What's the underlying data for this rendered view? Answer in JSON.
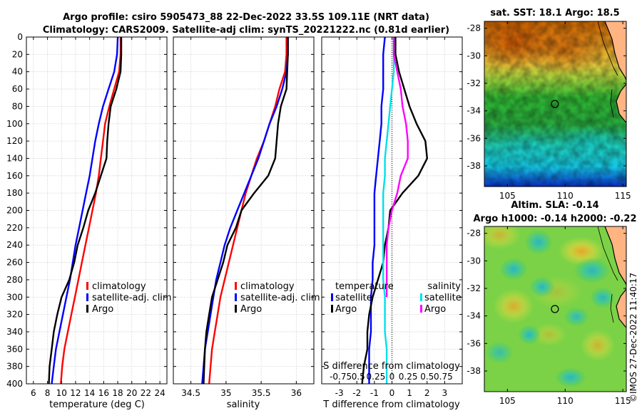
{
  "title": {
    "line1": "Argo profile: csiro 5905473_88 22-Dec-2022 33.5S 109.11E (NRT data)",
    "line2": "Climatology: CARS2009. Satellite-adj clim: synTS_20221222.nc (0.81d earlier)"
  },
  "watermark": "©IMOS 27-Dec-2022 11:40:17",
  "colors": {
    "climatology": "#ff0000",
    "satellite_adj": "#0000ff",
    "argo": "#000000",
    "sal_satellite": "#00e0e8",
    "sal_argo": "#ff00ff",
    "grid": "#c8c8c8"
  },
  "chart_data": [
    {
      "type": "line",
      "name": "temperature-panel",
      "xlabel": "temperature (deg C)",
      "ylabel": "",
      "xlim": [
        5,
        25
      ],
      "ylim": [
        400,
        0
      ],
      "xticks": [
        6,
        8,
        10,
        12,
        14,
        16,
        18,
        20,
        22,
        24
      ],
      "yticks": [
        0,
        20,
        40,
        60,
        80,
        100,
        120,
        140,
        160,
        180,
        200,
        220,
        240,
        260,
        280,
        300,
        320,
        340,
        360,
        380,
        400
      ],
      "legend": [
        "climatology",
        "satellite-adj. clim",
        "Argo"
      ],
      "series": [
        {
          "name": "climatology",
          "color": "#ff0000",
          "x": [
            18.4,
            18.4,
            18.2,
            17.5,
            16.8,
            16.2,
            15.9,
            15.6,
            15.3,
            14.9,
            14.4,
            13.9,
            13.4,
            12.9,
            12.4,
            11.9,
            11.4,
            10.9,
            10.4,
            10.1,
            9.9
          ],
          "y": [
            0,
            20,
            40,
            60,
            80,
            100,
            120,
            140,
            160,
            180,
            200,
            220,
            240,
            260,
            280,
            300,
            320,
            340,
            360,
            380,
            400
          ]
        },
        {
          "name": "satellite-adj. clim",
          "color": "#0000ff",
          "x": [
            18.0,
            17.9,
            17.5,
            16.7,
            15.9,
            15.3,
            14.8,
            14.4,
            14.0,
            13.5,
            13.0,
            12.5,
            12.0,
            11.6,
            11.2,
            10.7,
            10.2,
            9.7,
            9.2,
            8.9,
            8.6
          ],
          "y": [
            0,
            20,
            40,
            60,
            80,
            100,
            120,
            140,
            160,
            180,
            200,
            220,
            240,
            260,
            280,
            300,
            320,
            340,
            360,
            380,
            400
          ]
        },
        {
          "name": "Argo",
          "color": "#000000",
          "x": [
            18.5,
            18.5,
            18.4,
            17.8,
            17.0,
            16.7,
            16.5,
            16.4,
            15.6,
            14.8,
            13.8,
            13.1,
            12.3,
            11.8,
            11.1,
            10.0,
            9.4,
            8.9,
            8.6,
            8.3,
            8.2
          ],
          "y": [
            0,
            20,
            40,
            60,
            80,
            100,
            120,
            140,
            160,
            180,
            200,
            220,
            240,
            260,
            280,
            300,
            320,
            340,
            360,
            380,
            400
          ]
        }
      ]
    },
    {
      "type": "line",
      "name": "salinity-panel",
      "xlabel": "salinity",
      "xlim": [
        34.25,
        36.25
      ],
      "ylim": [
        400,
        0
      ],
      "xticks": [
        34.5,
        35,
        35.5,
        36
      ],
      "xticklabels": [
        "34.5",
        "35",
        "35.5",
        "36"
      ],
      "legend": [
        "climatology",
        "satellite-adj. clim",
        "Argo"
      ],
      "series": [
        {
          "name": "climatology",
          "color": "#ff0000",
          "x": [
            35.86,
            35.86,
            35.84,
            35.76,
            35.7,
            35.62,
            35.54,
            35.44,
            35.36,
            35.28,
            35.22,
            35.16,
            35.1,
            35.04,
            34.98,
            34.92,
            34.88,
            34.84,
            34.8,
            34.78,
            34.76
          ],
          "y": [
            0,
            20,
            40,
            60,
            80,
            100,
            120,
            140,
            160,
            180,
            200,
            220,
            240,
            260,
            280,
            300,
            320,
            340,
            360,
            380,
            400
          ]
        },
        {
          "name": "satellite-adj. clim",
          "color": "#0000ff",
          "x": [
            35.88,
            35.88,
            35.86,
            35.8,
            35.72,
            35.62,
            35.54,
            35.46,
            35.36,
            35.26,
            35.16,
            35.06,
            34.98,
            34.92,
            34.86,
            34.82,
            34.78,
            34.74,
            34.7,
            34.68,
            34.66
          ],
          "y": [
            0,
            20,
            40,
            60,
            80,
            100,
            120,
            140,
            160,
            180,
            200,
            220,
            240,
            260,
            280,
            300,
            320,
            340,
            360,
            380,
            400
          ]
        },
        {
          "name": "Argo",
          "color": "#000000",
          "x": [
            35.88,
            35.88,
            35.87,
            35.86,
            35.78,
            35.74,
            35.72,
            35.7,
            35.6,
            35.4,
            35.22,
            35.14,
            35.02,
            34.96,
            34.88,
            34.8,
            34.76,
            34.72,
            34.7,
            34.69,
            34.68
          ],
          "y": [
            0,
            20,
            40,
            60,
            80,
            100,
            120,
            140,
            160,
            180,
            200,
            220,
            240,
            260,
            280,
            300,
            320,
            340,
            360,
            380,
            400
          ]
        }
      ]
    },
    {
      "type": "line",
      "name": "difference-panel",
      "xlabel": "T difference from climatology",
      "xlabel_top": "S difference from climatology",
      "xlim": [
        -4,
        4
      ],
      "ylim": [
        400,
        0
      ],
      "xticks": [
        -3,
        -2,
        -1,
        0,
        1,
        2,
        3
      ],
      "xticklabels": [
        "-3",
        "-2",
        "-1",
        "0",
        "1",
        "2",
        "3"
      ],
      "sticklabels": [
        "-0.75",
        "0.5",
        "0.25",
        "0",
        "0.25",
        "0.5",
        "0.75"
      ],
      "legend_temperature_title": "temperature",
      "legend_salinity_title": "salinity",
      "legend_temperature": [
        "satellite",
        "Argo"
      ],
      "legend_salinity": [
        "satellite",
        "Argo"
      ],
      "series": [
        {
          "name": "T satellite",
          "color": "#0000ff",
          "x": [
            -0.4,
            -0.5,
            -0.5,
            -0.5,
            -0.6,
            -0.6,
            -0.7,
            -0.8,
            -0.9,
            -1.0,
            -1.0,
            -1.0,
            -1.0,
            -1.1,
            -1.1,
            -1.2,
            -1.2,
            -1.2,
            -1.3,
            -1.3,
            -1.3
          ],
          "y": [
            0,
            20,
            40,
            60,
            80,
            100,
            120,
            140,
            160,
            180,
            200,
            220,
            240,
            260,
            280,
            300,
            320,
            340,
            360,
            380,
            400
          ]
        },
        {
          "name": "T Argo",
          "color": "#000000",
          "x": [
            0.2,
            0.2,
            0.4,
            0.7,
            1.0,
            1.4,
            1.9,
            2.0,
            1.5,
            0.6,
            -0.1,
            -0.2,
            -0.4,
            -0.5,
            -0.8,
            -1.1,
            -1.3,
            -1.4,
            -1.4,
            -1.6,
            -1.7
          ],
          "y": [
            0,
            20,
            40,
            60,
            80,
            100,
            120,
            140,
            160,
            180,
            200,
            220,
            240,
            260,
            280,
            300,
            320,
            340,
            360,
            380,
            400
          ]
        },
        {
          "name": "S satellite",
          "color": "#00e0e8",
          "x": [
            0.1,
            0.1,
            0.1,
            0.0,
            -0.1,
            -0.2,
            -0.3,
            -0.4,
            -0.4,
            -0.5,
            -0.5,
            -0.5,
            -0.5,
            -0.5,
            -0.5,
            -0.4,
            -0.4,
            -0.4,
            -0.3,
            -0.3,
            -0.3
          ],
          "y": [
            0,
            20,
            40,
            60,
            80,
            100,
            120,
            140,
            160,
            180,
            200,
            220,
            240,
            260,
            280,
            300,
            320,
            340,
            360,
            380,
            400
          ]
        },
        {
          "name": "S Argo",
          "color": "#ff00ff",
          "x": [
            0.1,
            0.1,
            0.3,
            0.5,
            0.6,
            0.8,
            0.9,
            0.9,
            0.5,
            0.3,
            0.0,
            -0.2,
            -0.3,
            -0.3,
            -0.3,
            -0.3
          ],
          "y": [
            0,
            20,
            40,
            60,
            80,
            100,
            120,
            140,
            160,
            180,
            200,
            220,
            240,
            260,
            280,
            300
          ]
        }
      ]
    },
    {
      "type": "heatmap",
      "name": "sst-map",
      "title": "sat. SST: 18.1 Argo: 18.5",
      "xlim": [
        103,
        115.3
      ],
      "ylim": [
        -39.5,
        -27.5
      ],
      "xticks": [
        105,
        110,
        115
      ],
      "yticks": [
        -28,
        -30,
        -32,
        -34,
        -36,
        -38
      ],
      "marker": {
        "lon": 109.11,
        "lat": -33.5
      }
    },
    {
      "type": "heatmap",
      "name": "sla-map",
      "title1": "Altim. SLA: -0.14",
      "title2": "Argo h1000: -0.14 h2000: -0.22",
      "xlim": [
        103,
        115.3
      ],
      "ylim": [
        -39.5,
        -27.5
      ],
      "xticks": [
        105,
        110,
        115
      ],
      "yticks": [
        -28,
        -30,
        -32,
        -34,
        -36,
        -38
      ],
      "marker": {
        "lon": 109.11,
        "lat": -33.5
      }
    }
  ]
}
